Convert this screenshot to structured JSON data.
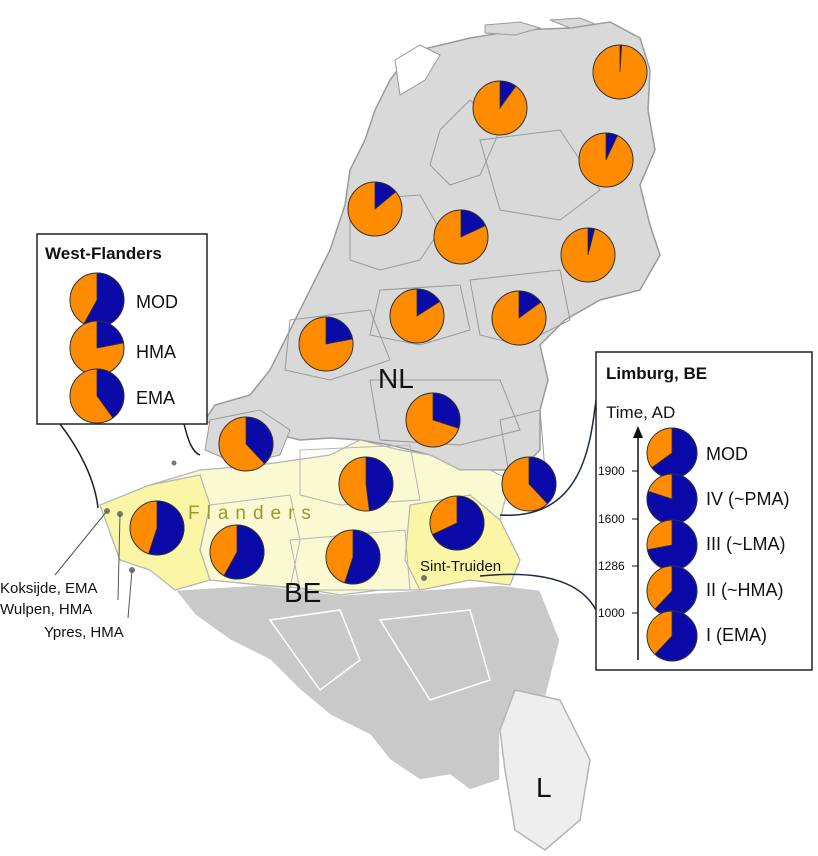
{
  "colors": {
    "orange": "#ff8c00",
    "blue": "#0a0aa8",
    "netherlands_fill": "#d9d9d9",
    "flanders_fill": "#fbf6a6",
    "flanders_light_fill": "#fbf9d2",
    "wallonia_fill": "#c9c9c9",
    "luxembourg_fill": "#eeeeee",
    "border": "#9a9a9a"
  },
  "countries": [
    "NL",
    "BE",
    "L"
  ],
  "region_label": "Flanders",
  "place_labels": {
    "sint_truiden": "Sint-Truiden",
    "koksijde": "Koksijde, EMA",
    "wulpen": "Wulpen, HMA",
    "ypres": "Ypres, HMA"
  },
  "map_pies": [
    {
      "id": "groningen-east",
      "blue_fraction": 0.01
    },
    {
      "id": "friesland",
      "blue_fraction": 0.1
    },
    {
      "id": "drenthe",
      "blue_fraction": 0.07
    },
    {
      "id": "noord-holland",
      "blue_fraction": 0.14
    },
    {
      "id": "flevoland",
      "blue_fraction": 0.18
    },
    {
      "id": "overijssel",
      "blue_fraction": 0.04
    },
    {
      "id": "utrecht",
      "blue_fraction": 0.16
    },
    {
      "id": "gelderland",
      "blue_fraction": 0.15
    },
    {
      "id": "zuid-holland",
      "blue_fraction": 0.22
    },
    {
      "id": "noord-brabant",
      "blue_fraction": 0.3
    },
    {
      "id": "zeeland",
      "blue_fraction": 0.38
    },
    {
      "id": "antwerp",
      "blue_fraction": 0.48
    },
    {
      "id": "limburg-nl",
      "blue_fraction": 0.38
    },
    {
      "id": "west-flanders",
      "blue_fraction": 0.55
    },
    {
      "id": "east-flanders",
      "blue_fraction": 0.58
    },
    {
      "id": "flemish-brabant",
      "blue_fraction": 0.55
    },
    {
      "id": "limburg-be",
      "blue_fraction": 0.68
    }
  ],
  "west_flanders_box": {
    "title": "West-Flanders",
    "items": [
      {
        "label": "MOD",
        "blue_fraction": 0.58
      },
      {
        "label": "HMA",
        "blue_fraction": 0.22
      },
      {
        "label": "EMA",
        "blue_fraction": 0.4
      }
    ]
  },
  "limburg_box": {
    "title": "Limburg, BE",
    "axis_title": "Time, AD",
    "ticks": [
      "1900",
      "1600",
      "1286",
      "1000"
    ],
    "items": [
      {
        "label": "MOD",
        "blue_fraction": 0.65
      },
      {
        "label": "IV (~PMA)",
        "blue_fraction": 0.8
      },
      {
        "label": "III (~LMA)",
        "blue_fraction": 0.72
      },
      {
        "label": "II (~HMA)",
        "blue_fraction": 0.62
      },
      {
        "label": "I (EMA)",
        "blue_fraction": 0.62
      }
    ]
  }
}
